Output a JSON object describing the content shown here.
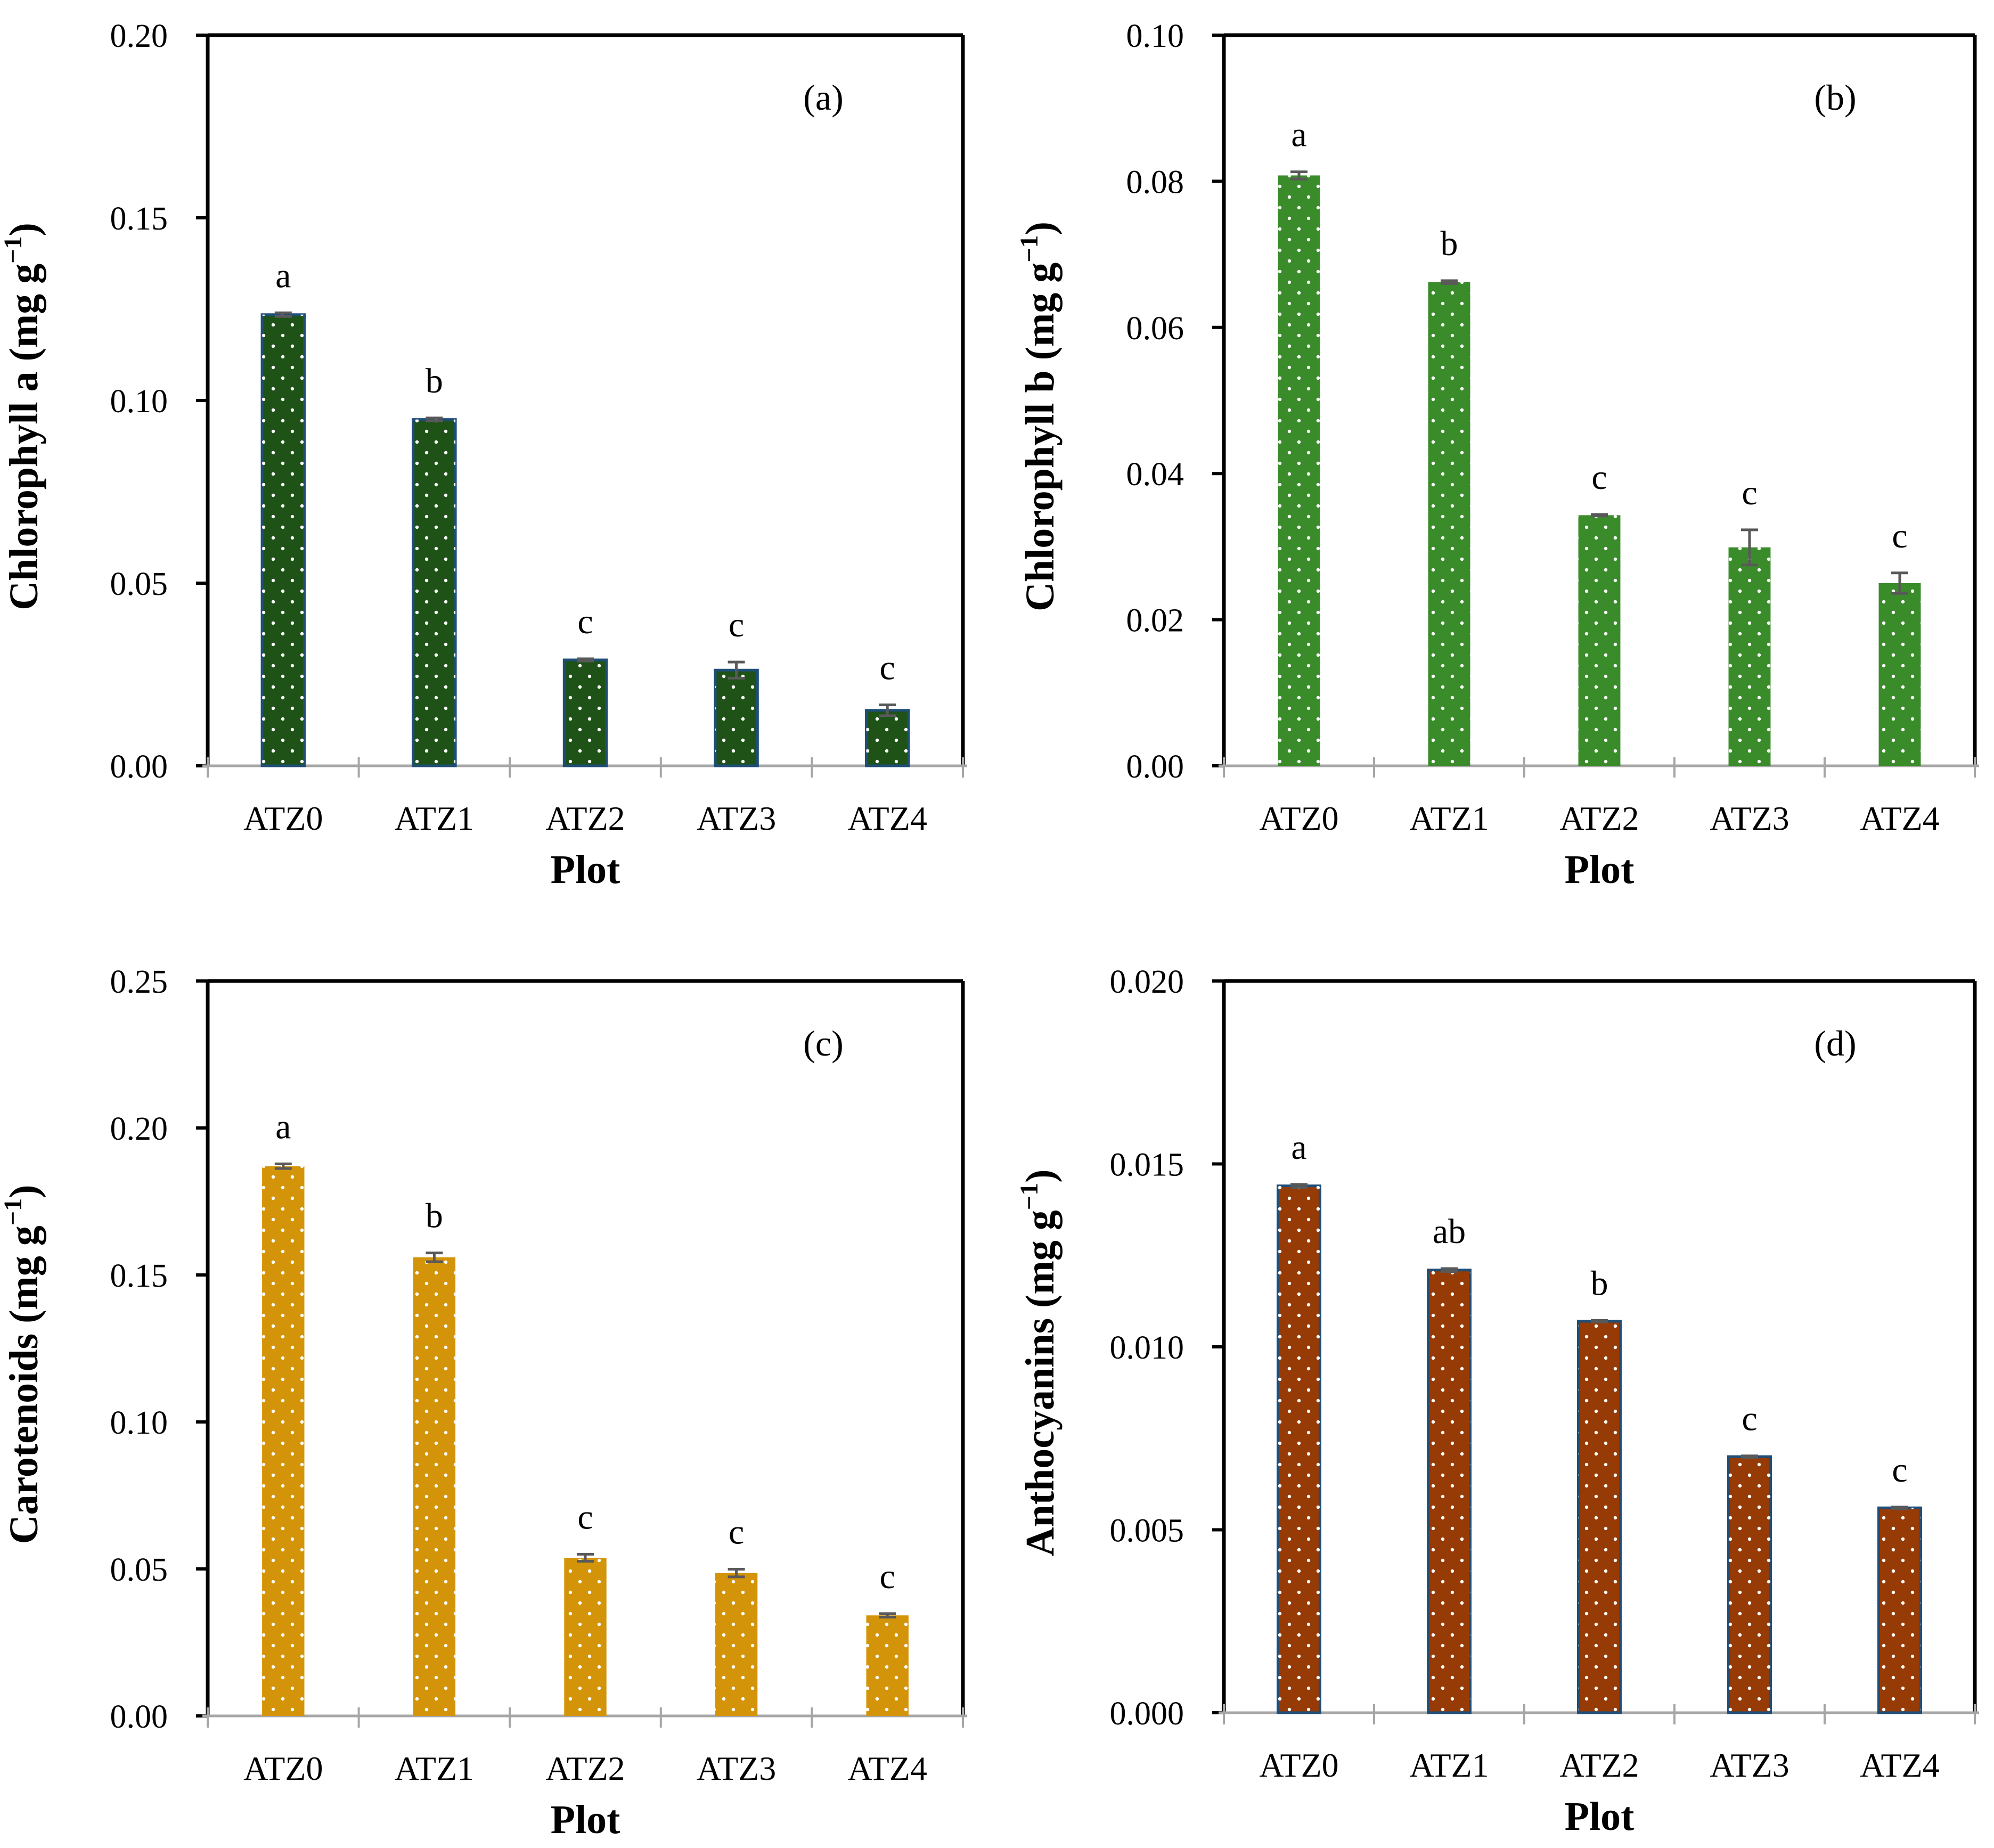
{
  "colors": {
    "axis": "#000000",
    "baseline": "#a6a6a6",
    "error_bar": "#595959",
    "bar_outline": "#1f4e79",
    "dot": "#ffffff"
  },
  "chart_data": [
    {
      "type": "bar",
      "panel_label": "(a)",
      "title": "",
      "xlabel": "Plot",
      "ylabel": "Chlorophyll a (mg g",
      "ylabel_sup": "−1",
      "ylabel_tail": ")",
      "categories": [
        "ATZ0",
        "ATZ1",
        "ATZ2",
        "ATZ3",
        "ATZ4"
      ],
      "values": [
        0.1235,
        0.0948,
        0.029,
        0.0262,
        0.0152
      ],
      "errors": [
        0.0005,
        0.0004,
        0.0003,
        0.0022,
        0.0015
      ],
      "letters": [
        "a",
        "b",
        "c",
        "c",
        "c"
      ],
      "ylim": [
        0,
        0.2
      ],
      "yticks": [
        "0.00",
        "0.05",
        "0.10",
        "0.15",
        "0.20"
      ],
      "ytick_values": [
        0,
        0.05,
        0.1,
        0.15,
        0.2
      ],
      "bar_color": "#1e5217",
      "outline": true,
      "grid": false
    },
    {
      "type": "bar",
      "panel_label": "(b)",
      "title": "",
      "xlabel": "Plot",
      "ylabel": "Chlorophyll b (mg g",
      "ylabel_sup": "−1",
      "ylabel_tail": ")",
      "categories": [
        "ATZ0",
        "ATZ1",
        "ATZ2",
        "ATZ3",
        "ATZ4"
      ],
      "values": [
        0.0808,
        0.0662,
        0.0343,
        0.0299,
        0.025
      ],
      "errors": [
        0.0005,
        0.0002,
        0.0001,
        0.0024,
        0.0014
      ],
      "letters": [
        "a",
        "b",
        "c",
        "c",
        "c"
      ],
      "ylim": [
        0,
        0.1
      ],
      "yticks": [
        "0.00",
        "0.02",
        "0.04",
        "0.06",
        "0.08",
        "0.10"
      ],
      "ytick_values": [
        0,
        0.02,
        0.04,
        0.06,
        0.08,
        0.1
      ],
      "bar_color": "#3a8c2a",
      "outline": false,
      "grid": false
    },
    {
      "type": "bar",
      "panel_label": "(c)",
      "title": "",
      "xlabel": "Plot",
      "ylabel": "Carotenoids (mg g",
      "ylabel_sup": "−1",
      "ylabel_tail": ")",
      "categories": [
        "ATZ0",
        "ATZ1",
        "ATZ2",
        "ATZ3",
        "ATZ4"
      ],
      "values": [
        0.187,
        0.156,
        0.0538,
        0.0486,
        0.0342
      ],
      "errors": [
        0.0008,
        0.0015,
        0.0012,
        0.0013,
        0.0006
      ],
      "letters": [
        "a",
        "b",
        "c",
        "c",
        "c"
      ],
      "ylim": [
        0,
        0.25
      ],
      "yticks": [
        "0.00",
        "0.05",
        "0.10",
        "0.15",
        "0.20",
        "0.25"
      ],
      "ytick_values": [
        0,
        0.05,
        0.1,
        0.15,
        0.2,
        0.25
      ],
      "bar_color": "#d4940a",
      "outline": false,
      "grid": false
    },
    {
      "type": "bar",
      "panel_label": "(d)",
      "title": "",
      "xlabel": "Plot",
      "ylabel": "Anthocyanins (mg g",
      "ylabel_sup": "−1",
      "ylabel_tail": ")",
      "categories": [
        "ATZ0",
        "ATZ1",
        "ATZ2",
        "ATZ3",
        "ATZ4"
      ],
      "values": [
        0.0144,
        0.0121,
        0.0107,
        0.007,
        0.0056
      ],
      "errors": [
        4e-05,
        4e-05,
        2e-05,
        2e-05,
        2e-05
      ],
      "letters": [
        "a",
        "ab",
        "b",
        "c",
        "c"
      ],
      "ylim": [
        0,
        0.02
      ],
      "yticks": [
        "0.000",
        "0.005",
        "0.010",
        "0.015",
        "0.020"
      ],
      "ytick_values": [
        0,
        0.005,
        0.01,
        0.015,
        0.02
      ],
      "bar_color": "#963b05",
      "outline": true,
      "grid": false
    }
  ]
}
